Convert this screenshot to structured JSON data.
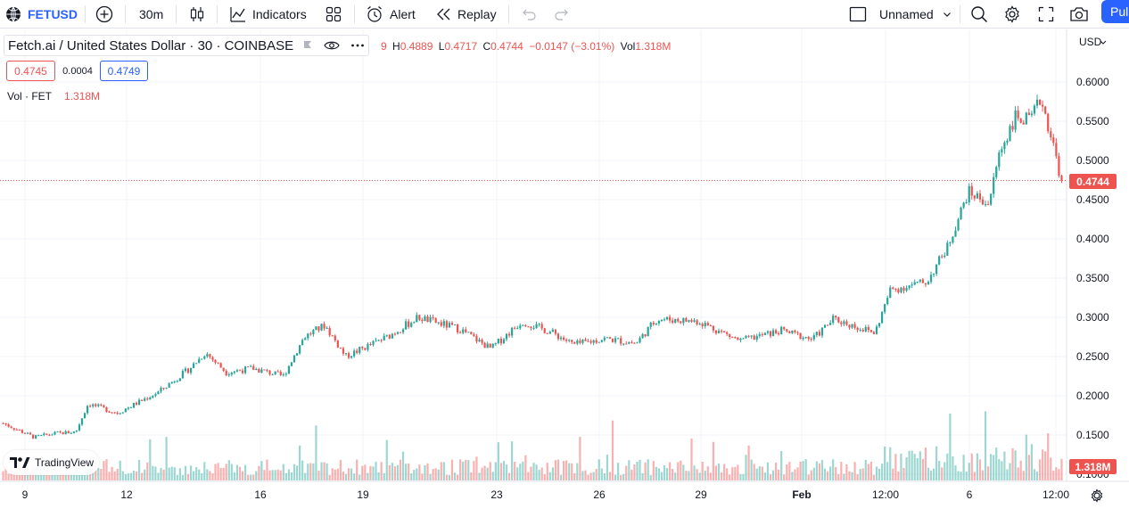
{
  "toolbar": {
    "symbol": "FETUSD",
    "interval": "30m",
    "indicators_label": "Indicators",
    "alert_label": "Alert",
    "replay_label": "Replay",
    "layout_name": "Unnamed",
    "publish_label": "Pul"
  },
  "legend": {
    "title": "Fetch.ai / United States Dollar · 30 · COINBASE",
    "ohlc_prefix": "9",
    "high_key": "H",
    "high": "0.4889",
    "low_key": "L",
    "low": "0.4717",
    "close_key": "C",
    "close": "0.4744",
    "change": "−0.0147 (−3.01%)",
    "vol_key": "Vol",
    "vol": "1.318M",
    "bid": "0.4745",
    "spread": "0.0004",
    "ask": "0.4749",
    "vol_label": "Vol · FET",
    "vol_value": "1.318M"
  },
  "price_axis": {
    "currency": "USD",
    "last_price_badge": "0.4744",
    "volume_badge": "1.318M"
  },
  "watermark": "TradingView",
  "colors": {
    "up": "#26a69a",
    "down": "#ef5350",
    "accent": "#2962ff",
    "grid": "#f0f3fa"
  },
  "chart_data": {
    "type": "candlestick",
    "title": "Fetch.ai / United States Dollar · 30 · COINBASE",
    "xlabel": "",
    "ylabel": "",
    "ylim": [
      0.1,
      0.64
    ],
    "y_ticks": [
      "0.6000",
      "0.5500",
      "0.5000",
      "0.4500",
      "0.4000",
      "0.3500",
      "0.3000",
      "0.2500",
      "0.2000",
      "0.1500",
      "0.1000"
    ],
    "x_tick_labels": [
      "9",
      "12",
      "16",
      "19",
      "23",
      "26",
      "29",
      "Feb",
      "12:00",
      "6",
      "12:00"
    ],
    "last_price": 0.4744,
    "price_path": [
      [
        0.0,
        0.165
      ],
      [
        0.03,
        0.147
      ],
      [
        0.05,
        0.152
      ],
      [
        0.07,
        0.154
      ],
      [
        0.082,
        0.19
      ],
      [
        0.11,
        0.178
      ],
      [
        0.15,
        0.205
      ],
      [
        0.18,
        0.235
      ],
      [
        0.195,
        0.255
      ],
      [
        0.215,
        0.23
      ],
      [
        0.24,
        0.235
      ],
      [
        0.27,
        0.225
      ],
      [
        0.29,
        0.275
      ],
      [
        0.31,
        0.29
      ],
      [
        0.33,
        0.25
      ],
      [
        0.37,
        0.275
      ],
      [
        0.4,
        0.3
      ],
      [
        0.44,
        0.285
      ],
      [
        0.47,
        0.26
      ],
      [
        0.5,
        0.295
      ],
      [
        0.53,
        0.28
      ],
      [
        0.55,
        0.265
      ],
      [
        0.58,
        0.273
      ],
      [
        0.61,
        0.267
      ],
      [
        0.63,
        0.298
      ],
      [
        0.67,
        0.295
      ],
      [
        0.71,
        0.27
      ],
      [
        0.75,
        0.283
      ],
      [
        0.78,
        0.272
      ],
      [
        0.8,
        0.298
      ],
      [
        0.84,
        0.28
      ],
      [
        0.855,
        0.335
      ],
      [
        0.89,
        0.345
      ],
      [
        0.91,
        0.39
      ],
      [
        0.93,
        0.46
      ],
      [
        0.95,
        0.445
      ],
      [
        0.96,
        0.51
      ],
      [
        0.975,
        0.555
      ],
      [
        0.99,
        0.55
      ],
      [
        1.0,
        0.58
      ],
      [
        1.01,
        0.53
      ],
      [
        1.02,
        0.4744
      ]
    ],
    "volume_max_label": "1.318M"
  }
}
